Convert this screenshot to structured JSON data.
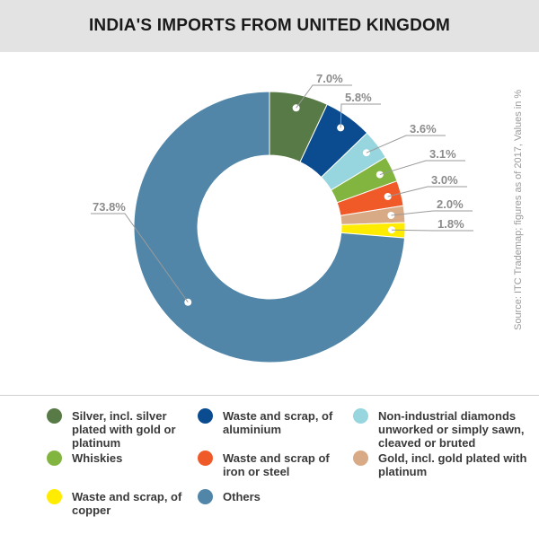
{
  "title": "INDIA'S IMPORTS FROM UNITED KINGDOM",
  "source": "Source: ITC Trademap; figures as of 2017, Values in %",
  "chart_data": {
    "type": "pie",
    "subtype": "donut",
    "slices": [
      {
        "name": "Silver, incl. silver plated with gold or platinum",
        "value": 7.0,
        "label": "7.0%",
        "color": "#587a46"
      },
      {
        "name": "Waste and scrap, of aluminium",
        "value": 5.8,
        "label": "5.8%",
        "color": "#0b4b8f"
      },
      {
        "name": "Non-industrial diamonds unworked or simply sawn, cleaved or bruted",
        "value": 3.6,
        "label": "3.6%",
        "color": "#97d5df"
      },
      {
        "name": "Whiskies",
        "value": 3.1,
        "label": "3.1%",
        "color": "#82b53f"
      },
      {
        "name": "Waste and scrap of iron or steel",
        "value": 3.0,
        "label": "3.0%",
        "color": "#f05a28"
      },
      {
        "name": "Gold, incl. gold plated with platinum",
        "value": 2.0,
        "label": "2.0%",
        "color": "#d8aa86"
      },
      {
        "name": "Waste and scrap, of copper",
        "value": 1.8,
        "label": "1.8%",
        "color": "#ffec00"
      },
      {
        "name": "Others",
        "value": 73.8,
        "label": "73.8%",
        "color": "#5186a8"
      }
    ],
    "legend_position": "bottom"
  }
}
